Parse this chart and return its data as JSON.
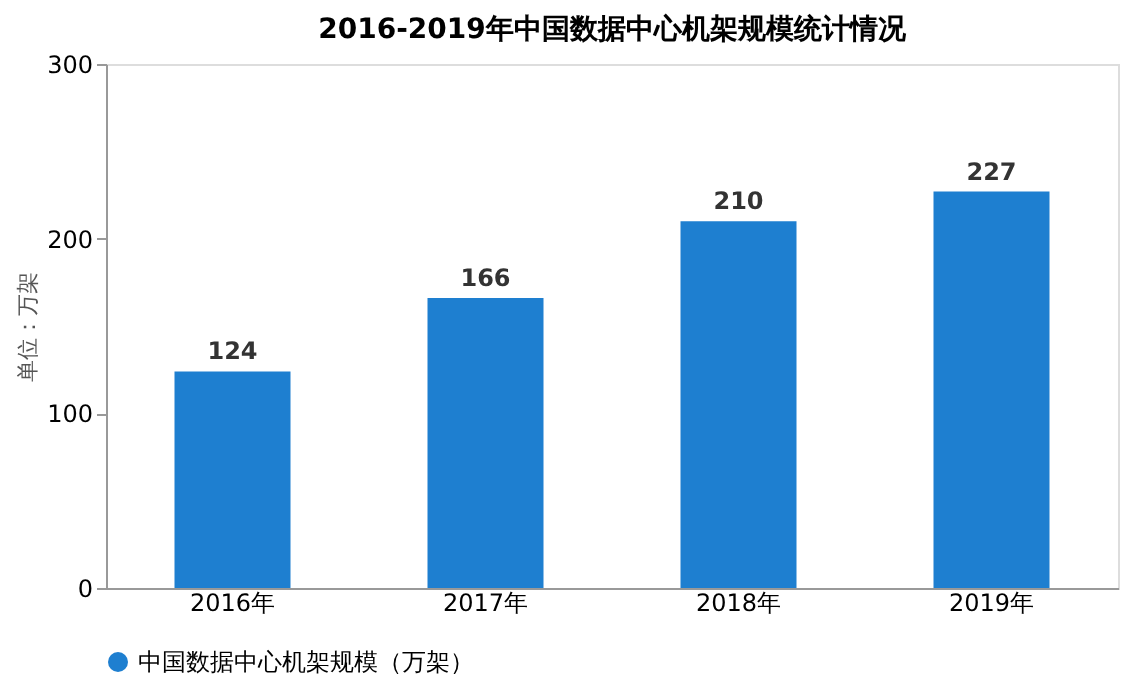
{
  "chart_data": {
    "type": "bar",
    "title": "2016-2019年中国数据中心机架规模统计情况",
    "ylabel": "单位：万架",
    "categories": [
      "2016年",
      "2017年",
      "2018年",
      "2019年"
    ],
    "series": [
      {
        "name": "中国数据中心机架规模（万架）",
        "color": "#1e7fd0",
        "values": [
          124,
          166,
          210,
          227
        ]
      }
    ],
    "ylim": [
      0,
      300
    ],
    "yticks": [
      0,
      100,
      200,
      300
    ],
    "grid": false,
    "legend": "bottom",
    "data_labels": true
  }
}
